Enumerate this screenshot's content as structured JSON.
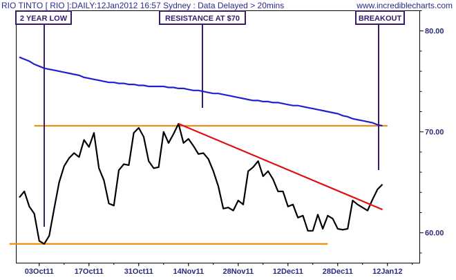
{
  "header": {
    "title": "RIO TINTO [ RIO ]:DAILY:12Jan2012 16:57 Sydney : Data Delayed > 20mins",
    "watermark": "www.incrediblecharts.com"
  },
  "annotations": [
    {
      "label": "2 YEAR LOW"
    },
    {
      "label": "RESISTANCE AT $70"
    },
    {
      "label": "BREAKOUT"
    }
  ],
  "colors": {
    "price": "#000000",
    "moving_average": "#2020d0",
    "support_resistance": "#f08a10",
    "trendline": "#e01010",
    "annotation": "#3a1a6a",
    "axis_text": "#2a2a7a"
  },
  "chart_data": {
    "type": "line",
    "x_labels": [
      "03Oct11",
      "17Oct11",
      "31Oct11",
      "14Nov11",
      "28Nov11",
      "12Dec11",
      "28Dec11",
      "12Jan12"
    ],
    "y_ticks": [
      60.0,
      70.0,
      80.0
    ],
    "y_tick_labels": [
      "60.00",
      "70.00",
      "80.00"
    ],
    "ylim": [
      57.0,
      82.0
    ],
    "series": [
      {
        "role": "price",
        "values": [
          63.5,
          64.1,
          62.6,
          61.9,
          59.2,
          58.9,
          59.7,
          62.4,
          65.0,
          66.6,
          67.4,
          67.9,
          67.5,
          69.2,
          68.5,
          69.9,
          66.4,
          65.2,
          62.9,
          62.7,
          66.2,
          66.8,
          66.7,
          69.9,
          70.4,
          69.5,
          67.1,
          66.4,
          66.5,
          70.0,
          68.9,
          69.8,
          70.8,
          68.9,
          69.3,
          68.6,
          67.8,
          67.9,
          67.3,
          66.1,
          64.6,
          62.4,
          62.5,
          62.2,
          63.2,
          62.8,
          66.1,
          66.5,
          67.1,
          65.6,
          66.1,
          65.3,
          64.1,
          64.1,
          62.6,
          62.8,
          61.5,
          61.7,
          60.2,
          60.2,
          61.8,
          60.4,
          61.7,
          61.4,
          60.4,
          60.3,
          60.4,
          63.2,
          62.8,
          62.5,
          62.2,
          63.3,
          64.3,
          64.8
        ]
      },
      {
        "role": "moving_average",
        "values": [
          77.4,
          77.2,
          77.0,
          76.7,
          76.5,
          76.3,
          76.2,
          76.1,
          76.0,
          75.9,
          75.8,
          75.7,
          75.6,
          75.4,
          75.3,
          75.2,
          75.1,
          75.0,
          74.9,
          74.9,
          74.8,
          74.8,
          74.7,
          74.7,
          74.6,
          74.6,
          74.5,
          74.5,
          74.5,
          74.5,
          74.4,
          74.4,
          74.3,
          74.3,
          74.2,
          74.1,
          74.1,
          74.0,
          73.9,
          73.8,
          73.8,
          73.7,
          73.6,
          73.5,
          73.4,
          73.3,
          73.2,
          73.1,
          73.1,
          73.0,
          73.0,
          72.9,
          72.9,
          72.8,
          72.7,
          72.6,
          72.6,
          72.5,
          72.4,
          72.3,
          72.2,
          72.1,
          72.0,
          71.9,
          71.8,
          71.6,
          71.5,
          71.3,
          71.2,
          71.1,
          71.0,
          70.9,
          70.7,
          70.6
        ]
      }
    ],
    "lines": [
      {
        "role": "resistance",
        "from": [
          3,
          70.6
        ],
        "to": [
          74,
          70.6
        ]
      },
      {
        "role": "support",
        "from": [
          -2,
          58.9
        ],
        "to": [
          62,
          58.9
        ]
      },
      {
        "role": "trendline",
        "from": [
          32,
          70.8
        ],
        "to": [
          73,
          62.3
        ]
      }
    ]
  }
}
